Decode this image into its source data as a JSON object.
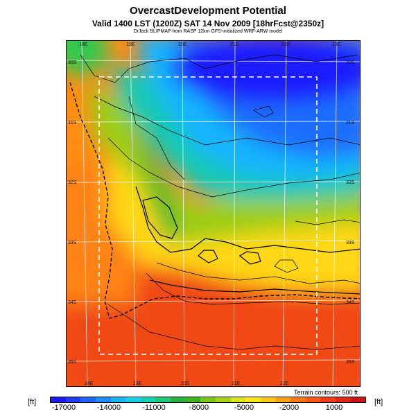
{
  "title": "OvercastDevelopment Potential",
  "subtitle": "Valid 1400 LST (1200Z) SAT 14 Nov 2009 [18hrFcst@2350z]",
  "credit": "DrJack BLIPMAP from RASP 12km GFS-initialized WRF-ARW model",
  "contour_note": "Terrain contours: 500 ft",
  "unit_left": "[ft]",
  "unit_right": "[ft]",
  "lon_labels_top": [
    "18E",
    "19E",
    "20E",
    "21E",
    "22E",
    "23E"
  ],
  "lon_labels_bottom": [
    "18E",
    "19E",
    "20E",
    "21E",
    "22E"
  ],
  "lat_labels": [
    "30S",
    "31S",
    "32S",
    "33S",
    "34S",
    "35S"
  ],
  "colorbar": {
    "ticks": [
      "-17000",
      "-14000",
      "-11000",
      "-8000",
      "-5000",
      "-2000",
      "1000"
    ],
    "colors": [
      "#1a1aff",
      "#1e3cff",
      "#1e64ff",
      "#1e8cff",
      "#18b4ff",
      "#14d2e6",
      "#14d2b4",
      "#1ec878",
      "#28b43c",
      "#3cb41e",
      "#78c814",
      "#aad214",
      "#dce614",
      "#ffe614",
      "#ffc814",
      "#ffa014",
      "#ff7814",
      "#ff5a14",
      "#f03c14",
      "#dc2814",
      "#c81414"
    ]
  },
  "colors": {
    "deep_blue": "#1a1aff",
    "cyan": "#18b4ff",
    "green": "#28b43c",
    "yellow": "#ffe614",
    "orange": "#ff7814",
    "red_orange": "#f03c14"
  }
}
